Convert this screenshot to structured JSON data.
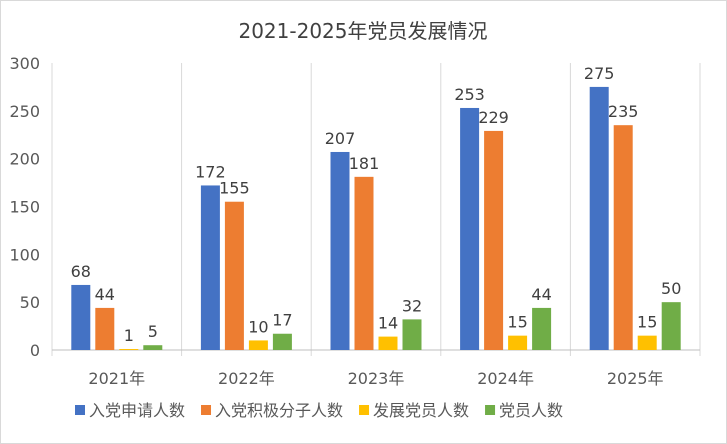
{
  "chart_data": {
    "type": "bar",
    "title": "2021-2025年党员发展情况",
    "categories": [
      "2021年",
      "2022年",
      "2023年",
      "2024年",
      "2025年"
    ],
    "series": [
      {
        "name": "入党申请人数",
        "color": "#4472C4",
        "values": [
          68,
          172,
          207,
          253,
          275
        ]
      },
      {
        "name": "入党积极分子人数",
        "color": "#ED7D31",
        "values": [
          44,
          155,
          181,
          229,
          235
        ]
      },
      {
        "name": "发展党员人数",
        "color": "#FFC000",
        "values": [
          1,
          10,
          14,
          15,
          15
        ]
      },
      {
        "name": "党员人数",
        "color": "#70AD47",
        "values": [
          5,
          17,
          32,
          44,
          50
        ]
      }
    ],
    "ylim": [
      0,
      300
    ],
    "yticks": [
      0,
      50,
      100,
      150,
      200,
      250,
      300
    ],
    "grid": "vertical category separators",
    "legend": "bottom",
    "data_labels": true
  }
}
